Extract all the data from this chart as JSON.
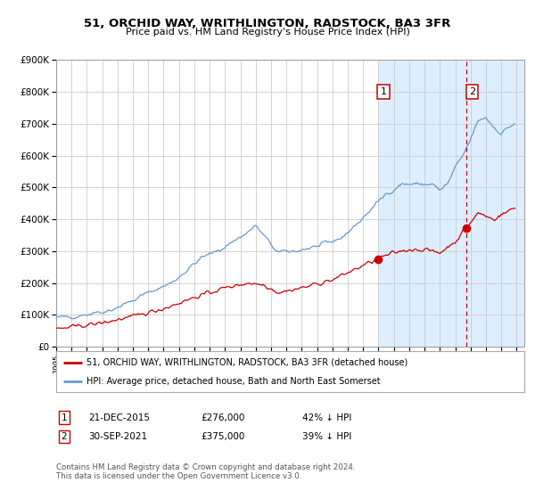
{
  "title": "51, ORCHID WAY, WRITHLINGTON, RADSTOCK, BA3 3FR",
  "subtitle": "Price paid vs. HM Land Registry's House Price Index (HPI)",
  "legend_line1": "51, ORCHID WAY, WRITHLINGTON, RADSTOCK, BA3 3FR (detached house)",
  "legend_line2": "HPI: Average price, detached house, Bath and North East Somerset",
  "annotation1_label": "1",
  "annotation1_date": "21-DEC-2015",
  "annotation1_value": "£276,000",
  "annotation1_pct": "42% ↓ HPI",
  "annotation2_label": "2",
  "annotation2_date": "30-SEP-2021",
  "annotation2_value": "£375,000",
  "annotation2_pct": "39% ↓ HPI",
  "footnote": "Contains HM Land Registry data © Crown copyright and database right 2024.\nThis data is licensed under the Open Government Licence v3.0.",
  "purchase1_date_num": 2015.97,
  "purchase1_price": 276000,
  "purchase2_date_num": 2021.75,
  "purchase2_price": 375000,
  "hpi_color": "#6699cc",
  "price_color": "#cc0000",
  "shade_color": "#ddeeff",
  "dashed_line_color": "#cc0000",
  "grid_color": "#cccccc",
  "background_color": "#ffffff",
  "ylim": [
    0,
    900000
  ],
  "xlim_start": 1995.0,
  "xlim_end": 2025.5
}
